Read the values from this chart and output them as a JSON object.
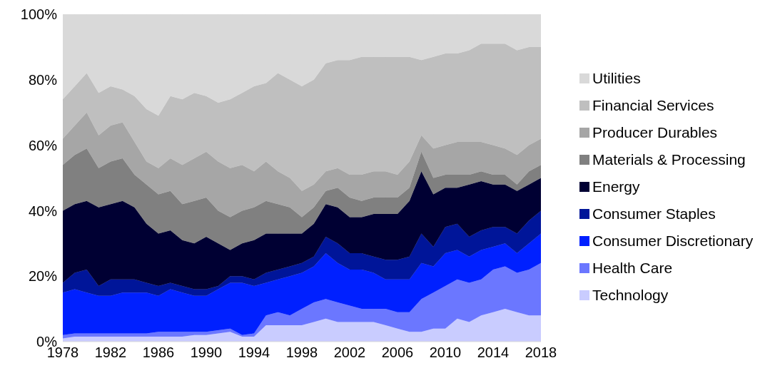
{
  "chart_data": {
    "type": "area",
    "stacked": true,
    "legend": "right",
    "grid": false,
    "x": [
      1978,
      1979,
      1980,
      1981,
      1982,
      1983,
      1984,
      1985,
      1986,
      1987,
      1988,
      1989,
      1990,
      1991,
      1992,
      1993,
      1994,
      1995,
      1996,
      1997,
      1998,
      1999,
      2000,
      2001,
      2002,
      2003,
      2004,
      2005,
      2006,
      2007,
      2008,
      2009,
      2010,
      2011,
      2012,
      2013,
      2014,
      2015,
      2016,
      2017,
      2018
    ],
    "xlim": [
      1978,
      2018
    ],
    "xticks": [
      1978,
      1982,
      1986,
      1990,
      1994,
      1998,
      2002,
      2006,
      2010,
      2014,
      2018
    ],
    "ylim": [
      0,
      100
    ],
    "yticks": [
      {
        "value": 0,
        "label": "0%"
      },
      {
        "value": 20,
        "label": "20%"
      },
      {
        "value": 40,
        "label": "40%"
      },
      {
        "value": 60,
        "label": "60%"
      },
      {
        "value": 80,
        "label": "80%"
      },
      {
        "value": 100,
        "label": "100%"
      }
    ],
    "series": [
      {
        "name": "Technology",
        "color": "#c9ccff",
        "values": [
          1,
          1.5,
          1.5,
          1.5,
          1.5,
          1.5,
          1.5,
          1.5,
          1.5,
          1.5,
          1.5,
          2,
          2,
          2.5,
          3,
          1.5,
          1.5,
          5,
          5,
          5,
          5,
          6,
          7,
          6,
          6,
          6,
          6,
          5,
          4,
          3,
          3,
          4,
          4,
          7,
          6,
          8,
          9,
          10,
          9,
          8,
          8
        ]
      },
      {
        "name": "Health Care",
        "color": "#6b77ff",
        "values": [
          1,
          1,
          1,
          1,
          1,
          1,
          1,
          1,
          1.5,
          1.5,
          1.5,
          1,
          1,
          1,
          1,
          0.5,
          1,
          3,
          4,
          3,
          5,
          6,
          6,
          6,
          5,
          4,
          4,
          5,
          5,
          6,
          10,
          11,
          13,
          12,
          12,
          11,
          13,
          13,
          12,
          14,
          16
        ]
      },
      {
        "name": "Consumer Discretionary",
        "color": "#0020ff",
        "values": [
          13,
          13.5,
          12.5,
          11.5,
          11.5,
          12.5,
          12.5,
          12.5,
          11,
          13,
          12,
          11,
          11,
          12.5,
          14,
          16,
          14.5,
          10,
          10,
          12,
          11,
          11,
          14,
          12,
          11,
          12,
          11,
          9,
          10,
          10,
          11,
          8,
          10,
          9,
          8,
          9,
          7,
          7,
          6,
          8,
          9
        ]
      },
      {
        "name": "Consumer Staples",
        "color": "#001599",
        "values": [
          3,
          5,
          7,
          3,
          5,
          4,
          4,
          3,
          3,
          2,
          2,
          2,
          2,
          1,
          2,
          2,
          2,
          3,
          3,
          3,
          3,
          3,
          5,
          6,
          5,
          5,
          5,
          6,
          6,
          7,
          9,
          6,
          8,
          8,
          6,
          6,
          6,
          5,
          6,
          7,
          7
        ]
      },
      {
        "name": "Energy",
        "color": "#000033",
        "values": [
          22,
          21,
          21,
          24,
          23,
          24,
          22,
          18,
          16,
          16,
          14,
          14,
          16,
          13,
          8,
          10,
          12,
          12,
          11,
          10,
          9,
          10,
          10,
          11,
          11,
          11,
          13,
          14,
          14,
          17,
          19,
          16,
          12,
          11,
          16,
          15,
          13,
          13,
          13,
          11,
          10
        ]
      },
      {
        "name": "Materials & Processing",
        "color": "#808080",
        "values": [
          14,
          15,
          16,
          12,
          13,
          13,
          10,
          12,
          12,
          12,
          11,
          13,
          12,
          10,
          10,
          10,
          10,
          10,
          9,
          8,
          5,
          5,
          4,
          6,
          6,
          5,
          5,
          5,
          5,
          4,
          6,
          5,
          4,
          4,
          3,
          3,
          3,
          3,
          2,
          4,
          4
        ]
      },
      {
        "name": "Producer Durables",
        "color": "#a6a6a6",
        "values": [
          8,
          9,
          11,
          10,
          11,
          11,
          10,
          7,
          8,
          10,
          12,
          13,
          14,
          15,
          15,
          14,
          11,
          12,
          10,
          9,
          8,
          7,
          6,
          6,
          7,
          8,
          8,
          8,
          7,
          8,
          5,
          9,
          9,
          10,
          10,
          9,
          9,
          8,
          9,
          8,
          8
        ]
      },
      {
        "name": "Financial Services",
        "color": "#bfbfbf",
        "values": [
          12,
          12,
          12,
          13,
          12,
          10,
          14,
          16,
          16,
          19,
          20,
          20,
          17,
          18,
          21,
          22,
          26,
          24,
          30,
          30,
          32,
          32,
          33,
          33,
          35,
          36,
          35,
          35,
          36,
          32,
          23,
          28,
          28,
          27,
          28,
          30,
          31,
          32,
          32,
          30,
          28
        ]
      },
      {
        "name": "Utilities",
        "color": "#d9d9d9",
        "values": [
          26,
          22,
          18,
          24,
          22,
          23,
          25,
          29,
          31,
          25,
          26,
          24,
          25,
          27,
          26,
          24,
          22,
          21,
          18,
          20,
          22,
          20,
          15,
          14,
          14,
          13,
          13,
          13,
          13,
          13,
          14,
          13,
          12,
          12,
          11,
          9,
          9,
          9,
          11,
          10,
          10
        ]
      }
    ]
  }
}
